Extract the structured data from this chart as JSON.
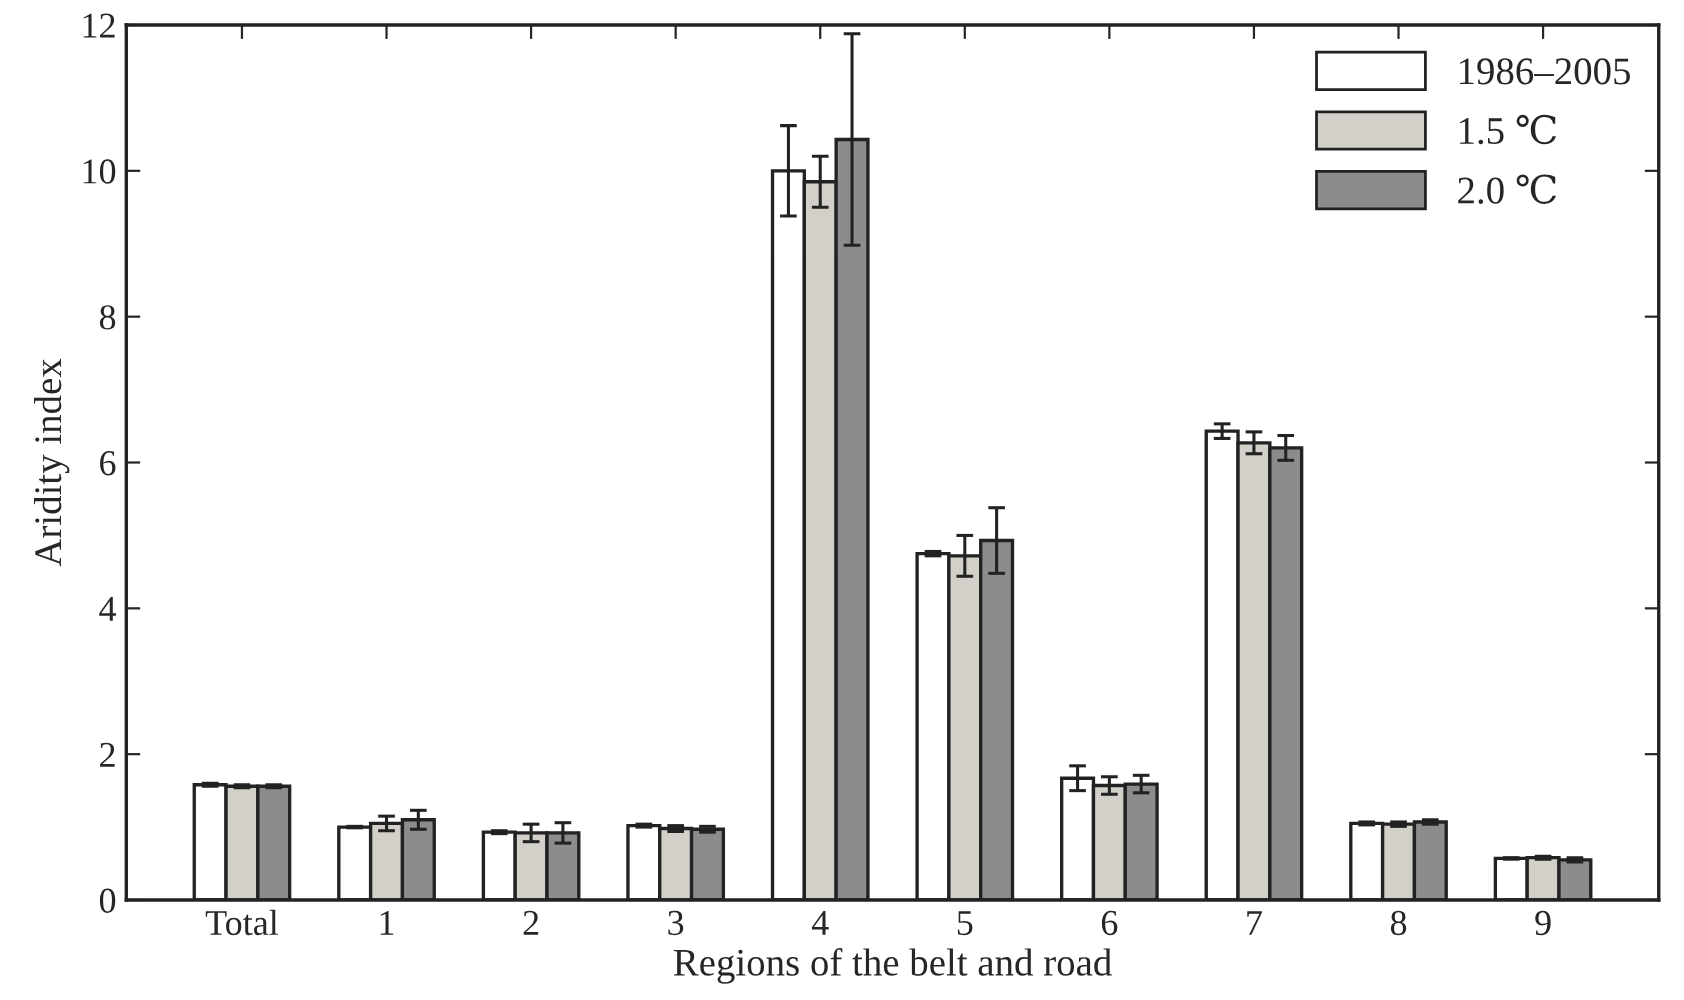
{
  "chart_data": {
    "type": "bar",
    "xlabel": "Regions of the belt and road",
    "ylabel": "Aridity index",
    "categories": [
      "Total",
      "1",
      "2",
      "3",
      "4",
      "5",
      "6",
      "7",
      "8",
      "9"
    ],
    "series": [
      {
        "name": "1986–2005",
        "color": "#ffffff",
        "values": [
          1.58,
          1.0,
          0.93,
          1.02,
          10.0,
          4.75,
          1.67,
          6.43,
          1.05,
          0.57
        ],
        "errors": [
          0.02,
          0.01,
          0.02,
          0.02,
          0.62,
          0.03,
          0.17,
          0.1,
          0.02,
          0.01
        ]
      },
      {
        "name": "1.5 ℃",
        "color": "#d3d0ca",
        "values": [
          1.56,
          1.05,
          0.92,
          0.98,
          9.85,
          4.72,
          1.57,
          6.27,
          1.04,
          0.58
        ],
        "errors": [
          0.02,
          0.1,
          0.12,
          0.04,
          0.35,
          0.28,
          0.12,
          0.15,
          0.03,
          0.02
        ]
      },
      {
        "name": "2.0 ℃",
        "color": "#8c8c8c",
        "values": [
          1.56,
          1.1,
          0.92,
          0.97,
          10.43,
          4.93,
          1.59,
          6.2,
          1.07,
          0.55
        ],
        "errors": [
          0.02,
          0.13,
          0.14,
          0.04,
          1.45,
          0.45,
          0.12,
          0.17,
          0.03,
          0.03
        ]
      }
    ],
    "ylim": [
      0,
      12
    ],
    "yticks": [
      0,
      2,
      4,
      6,
      8,
      10,
      12
    ],
    "grid": false,
    "legend": "top right"
  }
}
